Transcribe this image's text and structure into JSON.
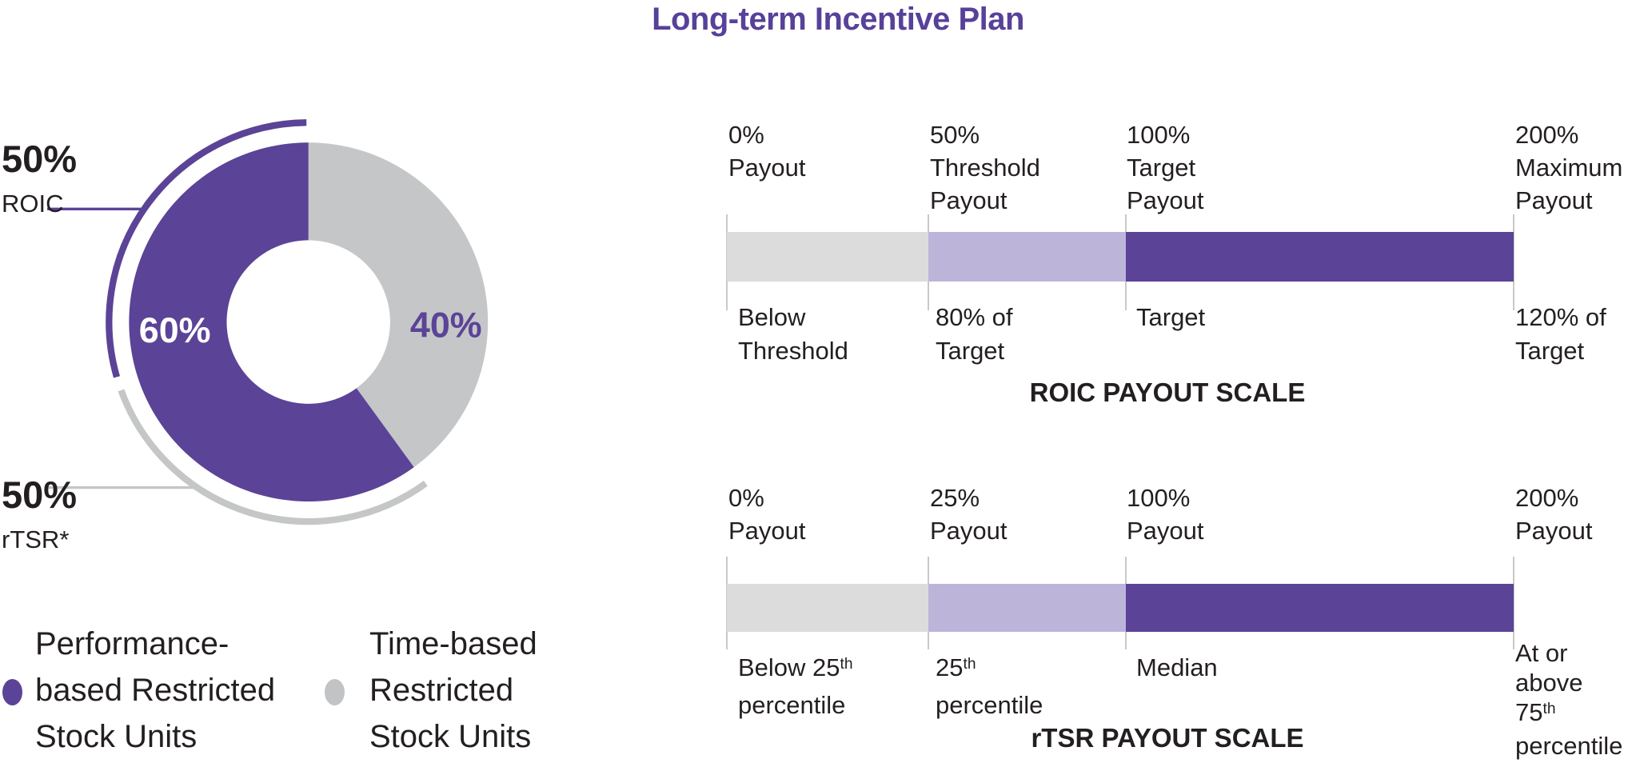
{
  "title": "Long-term Incentive Plan",
  "colors": {
    "accent_purple": "#5b4397",
    "title_purple": "#574199",
    "lavender": "#bdb4d9",
    "bar_light_gray": "#dcdcdd",
    "donut_gray": "#c5c6c7",
    "legend_gray": "#c2c3c5",
    "tick_gray": "#c9c9c9",
    "text_dark": "#231f20"
  },
  "donut": {
    "segments": [
      {
        "label": "60%",
        "value": 60,
        "color": "#5b4397"
      },
      {
        "label": "40%",
        "value": 40,
        "color": "#c5c6c7"
      }
    ],
    "callouts": [
      {
        "pct": "50%",
        "metric": "ROIC"
      },
      {
        "pct": "50%",
        "metric": "rTSR*"
      }
    ]
  },
  "legend": {
    "items": [
      {
        "label": "Performance-based Restricted Stock Units",
        "color": "#5b4397",
        "lines": [
          "Performance-",
          "based Restricted",
          "Stock Units"
        ]
      },
      {
        "label": "Time-based Restricted Stock Units",
        "color": "#c2c3c5",
        "lines": [
          "Time-based",
          "Restricted",
          "Stock Units"
        ]
      }
    ]
  },
  "scales": [
    {
      "title": "ROIC PAYOUT SCALE",
      "top_labels": [
        [
          "0%",
          "Payout"
        ],
        [
          "50%",
          "Threshold",
          "Payout"
        ],
        [
          "100%",
          "Target",
          "Payout"
        ],
        [
          "200%",
          "Maximum",
          "Payout"
        ]
      ],
      "bottom_labels": [
        [
          [
            {
              "t": "Below"
            }
          ],
          [
            {
              "t": "Threshold"
            }
          ]
        ],
        [
          [
            {
              "t": "80% of"
            }
          ],
          [
            {
              "t": "Target"
            }
          ]
        ],
        [
          [
            {
              "t": "Target"
            }
          ]
        ],
        [
          [
            {
              "t": "120% of"
            }
          ],
          [
            {
              "t": "Target"
            }
          ]
        ]
      ],
      "segment_colors": [
        "#dcdcdd",
        "#bdb4d9",
        "#5b4397"
      ]
    },
    {
      "title": "rTSR PAYOUT SCALE",
      "top_labels": [
        [
          "0%",
          "Payout"
        ],
        [
          "25%",
          "Payout"
        ],
        [
          "100%",
          "Payout"
        ],
        [
          "200%",
          "Payout"
        ]
      ],
      "bottom_labels": [
        [
          [
            {
              "t": "Below 25"
            },
            {
              "t": "th",
              "sup": true
            }
          ],
          [
            {
              "t": "percentile"
            }
          ]
        ],
        [
          [
            {
              "t": "25"
            },
            {
              "t": "th",
              "sup": true
            }
          ],
          [
            {
              "t": "percentile"
            }
          ]
        ],
        [
          [
            {
              "t": "Median"
            }
          ]
        ],
        [
          [
            {
              "t": "At or"
            }
          ],
          [
            {
              "t": "above"
            }
          ],
          [
            {
              "t": "75"
            },
            {
              "t": "th",
              "sup": true
            }
          ],
          [
            {
              "t": "percentile"
            }
          ]
        ]
      ],
      "segment_colors": [
        "#dcdcdd",
        "#bdb4d9",
        "#5b4397"
      ]
    }
  ],
  "chart_data": [
    {
      "type": "pie",
      "subtype": "donut",
      "title": "Long-term Incentive Plan",
      "labels": [
        "Performance-based Restricted Stock Units",
        "Time-based Restricted Stock Units"
      ],
      "values": [
        60,
        40
      ],
      "colors": [
        "#5b4397",
        "#c5c6c7"
      ],
      "annotations": [
        "50% ROIC",
        "50% rTSR*"
      ],
      "note": "Outer arcs show the performance-based portion weighted 50% ROIC and 50% rTSR*"
    },
    {
      "type": "bar",
      "subtype": "payout-scale",
      "title": "ROIC PAYOUT SCALE",
      "categories": [
        "Below Threshold",
        "80% of Target",
        "Target",
        "120% of Target"
      ],
      "values": [
        0,
        50,
        100,
        200
      ],
      "value_labels": [
        "0% Payout",
        "50% Threshold Payout",
        "100% Target Payout",
        "200% Maximum Payout"
      ],
      "segment_colors": [
        "#dcdcdd",
        "#bdb4d9",
        "#5b4397"
      ]
    },
    {
      "type": "bar",
      "subtype": "payout-scale",
      "title": "rTSR PAYOUT SCALE",
      "categories": [
        "Below 25th percentile",
        "25th percentile",
        "Median",
        "At or above 75th percentile"
      ],
      "values": [
        0,
        25,
        100,
        200
      ],
      "value_labels": [
        "0% Payout",
        "25% Payout",
        "100% Payout",
        "200% Payout"
      ],
      "segment_colors": [
        "#dcdcdd",
        "#bdb4d9",
        "#5b4397"
      ]
    }
  ]
}
